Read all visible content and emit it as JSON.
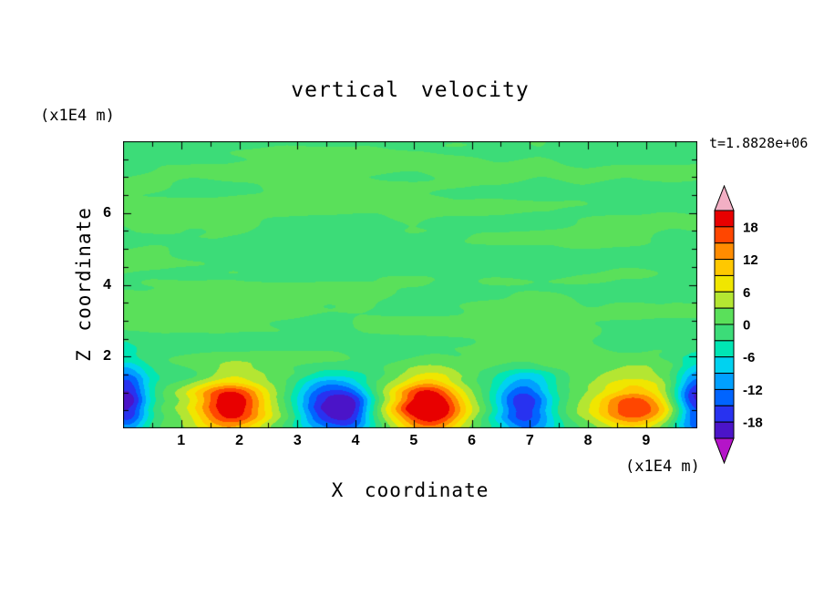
{
  "chart_data": {
    "type": "heatmap",
    "title": "vertical velocity",
    "time_label": "t=1.8828e+06",
    "xlabel": "X coordinate",
    "x_unit": "(x1E4 m)",
    "ylabel": "Z coordinate",
    "y_unit": "(x1E4 m)",
    "x_range": [
      0,
      9.88
    ],
    "z_range": [
      0,
      8
    ],
    "x_major_ticks": [
      1,
      2,
      3,
      4,
      5,
      6,
      7,
      8,
      9
    ],
    "z_major_ticks": [
      2,
      4,
      6
    ],
    "minor_tick_step": 0.5,
    "contour_levels": [
      -21,
      -18,
      -15,
      -12,
      -9,
      -6,
      -3,
      0,
      3,
      6,
      9,
      12,
      15,
      18,
      21
    ],
    "palette": [
      "#4B14C8",
      "#2832F0",
      "#0064FF",
      "#00A0FF",
      "#00D2F0",
      "#00E6B4",
      "#3CDC78",
      "#5AE05A",
      "#B4E632",
      "#F0E600",
      "#FFC800",
      "#FF8C00",
      "#FF4600",
      "#E80000"
    ],
    "under_color": "#B414C8",
    "over_color": "#F2AFC4",
    "colorbar_labels": [
      18,
      12,
      6,
      0,
      -6,
      -12,
      -18
    ],
    "background_noise_amplitude": 1.3,
    "plumes": [
      {
        "x": 0.05,
        "z": 0.7,
        "amp": -21,
        "wx": 0.38,
        "wz": 0.95
      },
      {
        "x": 1.85,
        "z": 0.6,
        "amp": 19.5,
        "wx": 0.62,
        "wz": 0.85
      },
      {
        "x": 3.45,
        "z": 0.65,
        "amp": -18,
        "wx": 0.5,
        "wz": 0.8
      },
      {
        "x": 3.95,
        "z": 0.55,
        "amp": -15,
        "wx": 0.38,
        "wz": 0.7
      },
      {
        "x": 5.25,
        "z": 0.6,
        "amp": 22,
        "wx": 0.6,
        "wz": 0.9
      },
      {
        "x": 6.9,
        "z": 0.65,
        "amp": -19,
        "wx": 0.52,
        "wz": 0.8
      },
      {
        "x": 8.8,
        "z": 0.55,
        "amp": 14.5,
        "wx": 0.7,
        "wz": 0.75
      },
      {
        "x": 9.88,
        "z": 0.75,
        "amp": -20,
        "wx": 0.4,
        "wz": 0.95
      }
    ],
    "description": "Vertical velocity contour field at t=1.8828e+06: near-zero (green) velocity through most of the domain with alternating rising warm plumes (yellow/orange/red) and sinking cold plumes (cyan/blue) along the bottom boundary near z=0.5-1.5 x1E4 m."
  }
}
